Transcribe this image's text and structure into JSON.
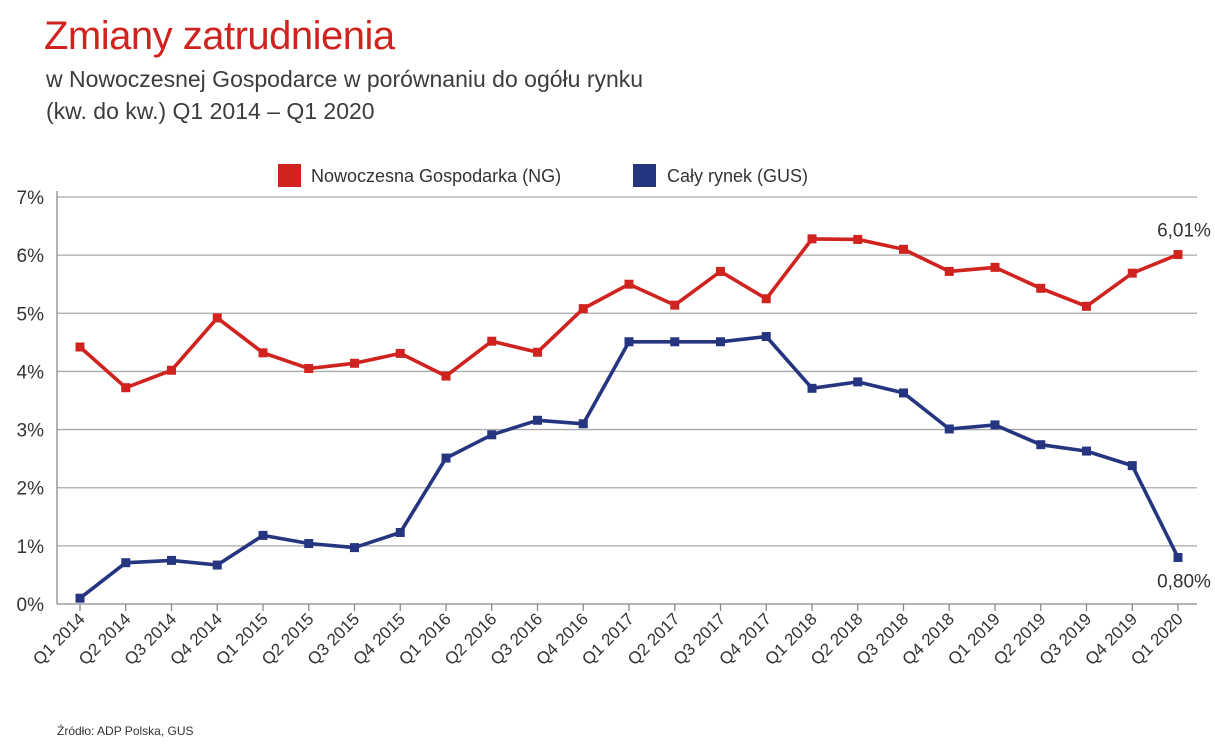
{
  "chart_data": {
    "type": "line",
    "title": "Zmiany zatrudnienia",
    "subtitle_line1": "w Nowoczesnej Gospodarce w porównaniu do ogółu rynku",
    "subtitle_line2": "(kw. do kw.) Q1 2014 – Q1 2020",
    "source": "Źródło: ADP Polska, GUS",
    "categories": [
      "Q1 2014",
      "Q2 2014",
      "Q3 2014",
      "Q4 2014",
      "Q1 2015",
      "Q2 2015",
      "Q3 2015",
      "Q4 2015",
      "Q1 2016",
      "Q2 2016",
      "Q3 2016",
      "Q4 2016",
      "Q1 2017",
      "Q2 2017",
      "Q3 2017",
      "Q4 2017",
      "Q1 2018",
      "Q2 2018",
      "Q3 2018",
      "Q4 2018",
      "Q1 2019",
      "Q2 2019",
      "Q3 2019",
      "Q4 2019",
      "Q1 2020"
    ],
    "yticks": [
      "0%",
      "1%",
      "2%",
      "3%",
      "4%",
      "5%",
      "6%",
      "7%"
    ],
    "ylim": [
      0,
      7
    ],
    "grid": true,
    "legend_position": "top",
    "series": [
      {
        "name": "Nowoczesna Gospodarka (NG)",
        "color": "#d0231f",
        "values": [
          4.42,
          3.72,
          4.02,
          4.92,
          4.32,
          4.05,
          4.14,
          4.31,
          3.92,
          4.52,
          4.33,
          5.08,
          5.5,
          5.14,
          5.72,
          5.25,
          6.28,
          6.27,
          6.1,
          5.72,
          5.79,
          5.43,
          5.12,
          5.69,
          6.01
        ]
      },
      {
        "name": "Cały rynek (GUS)",
        "color": "#25357f",
        "values": [
          0.1,
          0.71,
          0.75,
          0.67,
          1.18,
          1.04,
          0.97,
          1.23,
          2.51,
          2.91,
          3.16,
          3.1,
          4.51,
          4.51,
          4.51,
          4.6,
          3.71,
          3.82,
          3.63,
          3.01,
          3.08,
          2.74,
          2.63,
          2.38,
          0.8
        ]
      }
    ],
    "annotations": [
      {
        "text": "6,01%",
        "series": 0,
        "index": 24
      },
      {
        "text": "0,80%",
        "series": 1,
        "index": 24
      }
    ]
  }
}
